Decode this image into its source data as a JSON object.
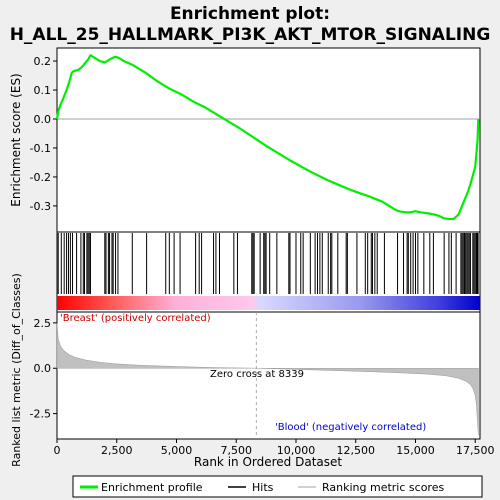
{
  "title_line1": "Enrichment plot:",
  "title_line2": "H_ALL_25_HALLMARK_PI3K_AKT_MTOR_SIGNALING",
  "colors": {
    "enrichment_line": "#00ee00",
    "hits": "#000000",
    "positive": "#ff0000",
    "negative": "#0000ff",
    "metric_fill": "#c0c0c0",
    "zero_line": "#808080"
  },
  "chart_data": {
    "type": "line",
    "xlabel": "Rank in Ordered Dataset",
    "x_ticks": [
      0,
      2500,
      5000,
      7500,
      10000,
      12500,
      15000,
      17500
    ],
    "x_tick_labels": [
      "0",
      "2,500",
      "5,000",
      "7,500",
      "10,000",
      "12,500",
      "15,000",
      "17,500"
    ],
    "xlim": [
      0,
      17700
    ],
    "top_panel": {
      "ylabel": "Enrichment score (ES)",
      "ylim": [
        -0.39,
        0.245
      ],
      "y_ticks": [
        0.2,
        0.1,
        0.0,
        -0.1,
        -0.2,
        -0.3
      ],
      "y_tick_labels": [
        "0.2",
        "0.1",
        "0.0",
        "-0.1",
        "-0.2",
        "-0.3"
      ],
      "series": [
        {
          "name": "Enrichment profile",
          "x": [
            0,
            60,
            150,
            280,
            400,
            520,
            620,
            700,
            900,
            1050,
            1150,
            1300,
            1400,
            1600,
            1800,
            2000,
            2200,
            2300,
            2450,
            2600,
            2800,
            3200,
            3700,
            4200,
            4700,
            5200,
            5700,
            6200,
            6700,
            7200,
            7700,
            8339,
            8800,
            9300,
            9800,
            10300,
            10800,
            11300,
            11800,
            12300,
            12800,
            13000,
            13300,
            13600,
            13900,
            14200,
            14400,
            14600,
            14800,
            15000,
            15200,
            15500,
            15800,
            16000,
            16200,
            16400,
            16600,
            16800,
            16900,
            17000,
            17100,
            17200,
            17300,
            17400,
            17500,
            17550,
            17600,
            17630
          ],
          "y": [
            0.0,
            0.03,
            0.05,
            0.075,
            0.1,
            0.13,
            0.16,
            0.165,
            0.17,
            0.18,
            0.19,
            0.205,
            0.22,
            0.21,
            0.2,
            0.195,
            0.205,
            0.21,
            0.215,
            0.21,
            0.2,
            0.185,
            0.16,
            0.13,
            0.105,
            0.085,
            0.06,
            0.04,
            0.015,
            -0.01,
            -0.035,
            -0.07,
            -0.095,
            -0.12,
            -0.145,
            -0.168,
            -0.19,
            -0.21,
            -0.228,
            -0.245,
            -0.26,
            -0.265,
            -0.275,
            -0.285,
            -0.3,
            -0.315,
            -0.32,
            -0.322,
            -0.322,
            -0.318,
            -0.322,
            -0.325,
            -0.33,
            -0.335,
            -0.343,
            -0.345,
            -0.345,
            -0.33,
            -0.31,
            -0.29,
            -0.27,
            -0.25,
            -0.225,
            -0.195,
            -0.165,
            -0.12,
            -0.07,
            0.0
          ]
        }
      ]
    },
    "hits_panel": {
      "hit_ranks": [
        50,
        180,
        300,
        400,
        480,
        560,
        650,
        820,
        1000,
        1100,
        1150,
        1250,
        1300,
        1350,
        1400,
        2000,
        2050,
        2150,
        2200,
        2300,
        2350,
        2450,
        2550,
        3150,
        3750,
        4550,
        4700,
        4900,
        5150,
        5800,
        5950,
        6050,
        6550,
        6650,
        6800,
        7400,
        7550,
        8150,
        8200,
        8250,
        8500,
        8650,
        8700,
        8750,
        8900,
        9200,
        9700,
        9750,
        10000,
        10200,
        10300,
        10600,
        10800,
        10900,
        11000,
        11100,
        11350,
        11450,
        11500,
        11750,
        12100,
        12150,
        12550,
        12900,
        13000,
        13150,
        13200,
        13300,
        13400,
        13700,
        14250,
        14500,
        14650,
        14700,
        14800,
        14900,
        15000,
        15100,
        15350,
        15600,
        15750,
        16200,
        16400,
        16500,
        16700,
        16900,
        16950,
        17000,
        17050,
        17100,
        17150,
        17200,
        17250,
        17300,
        17400,
        17450,
        17500,
        17550,
        17580,
        17600,
        17620
      ]
    },
    "bottom_panel": {
      "ylabel": "Ranked list metric (Diff_of_Classes)",
      "ylim": [
        -3.9,
        3.1
      ],
      "y_ticks": [
        2.5,
        0.0,
        -2.5
      ],
      "y_tick_labels": [
        "2.5",
        "0.0",
        "-2.5"
      ],
      "metric_x": [
        0,
        50,
        150,
        300,
        500,
        800,
        1200,
        1800,
        2500,
        3500,
        5000,
        6500,
        8339,
        10000,
        12000,
        14000,
        15500,
        16300,
        16800,
        17100,
        17300,
        17400,
        17500,
        17550,
        17600,
        17630
      ],
      "metric_y": [
        2.5,
        1.6,
        1.2,
        0.95,
        0.75,
        0.58,
        0.45,
        0.33,
        0.24,
        0.16,
        0.09,
        0.04,
        0.0,
        -0.06,
        -0.14,
        -0.23,
        -0.32,
        -0.42,
        -0.55,
        -0.7,
        -0.9,
        -1.1,
        -1.5,
        -2.0,
        -3.0,
        -3.7
      ],
      "zero_cross_label": "Zero cross at 8339",
      "zero_cross_rank": 8339,
      "positive_label": "'Breast' (positively correlated)",
      "negative_label": "'Blood' (negatively correlated)"
    },
    "legend": {
      "placement": "bottom",
      "items": [
        "Enrichment profile",
        "Hits",
        "Ranking metric scores"
      ]
    }
  }
}
